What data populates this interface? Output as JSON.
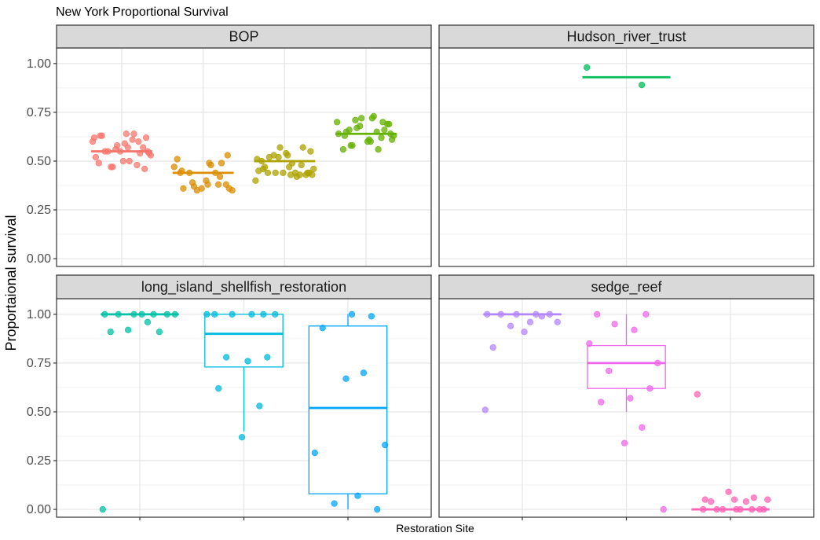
{
  "chart_data": {
    "type": "boxplot",
    "title": "New York Proportional Survival",
    "xlabel": "Restoration Site",
    "ylabel": "Proportaional survival",
    "ylim": [
      -0.04,
      1.08
    ],
    "yticks": [
      "0.00",
      "0.25",
      "0.50",
      "0.75",
      "1.00"
    ],
    "grid": true,
    "legend": "none",
    "panels": [
      {
        "name": "BOP",
        "groups": [
          {
            "color": "#F8766D",
            "box": {
              "q1": 0.55,
              "median": 0.55,
              "q3": 0.55,
              "lower": 0.55,
              "upper": 0.55
            },
            "points": [
              0.62,
              0.61,
              0.58,
              0.57,
              0.55,
              0.54,
              0.5,
              0.49,
              0.48,
              0.47,
              0.57,
              0.6,
              0.62,
              0.55,
              0.54,
              0.59,
              0.63,
              0.64,
              0.55,
              0.53,
              0.52,
              0.5,
              0.47,
              0.46,
              0.56,
              0.6,
              0.63,
              0.64,
              0.55
            ]
          },
          {
            "color": "#DB8E00",
            "box": {
              "q1": 0.44,
              "median": 0.44,
              "q3": 0.44,
              "lower": 0.44,
              "upper": 0.44
            },
            "points": [
              0.44,
              0.38,
              0.37,
              0.49,
              0.47,
              0.53,
              0.44,
              0.49,
              0.4,
              0.36,
              0.44,
              0.36,
              0.35,
              0.51,
              0.48,
              0.39,
              0.38,
              0.35,
              0.42,
              0.45,
              0.38,
              0.36
            ]
          },
          {
            "color": "#AEA200",
            "box": {
              "q1": 0.5,
              "median": 0.5,
              "q3": 0.5,
              "lower": 0.5,
              "upper": 0.5
            },
            "points": [
              0.57,
              0.53,
              0.47,
              0.42,
              0.44,
              0.46,
              0.45,
              0.49,
              0.53,
              0.44,
              0.52,
              0.48,
              0.46,
              0.47,
              0.55,
              0.52,
              0.51,
              0.44,
              0.57,
              0.43,
              0.44,
              0.43,
              0.54,
              0.5,
              0.43,
              0.44,
              0.43,
              0.4,
              0.44
            ]
          },
          {
            "color": "#64B200",
            "box": {
              "q1": 0.64,
              "median": 0.64,
              "q3": 0.64,
              "lower": 0.64,
              "upper": 0.64
            },
            "points": [
              0.73,
              0.71,
              0.69,
              0.68,
              0.7,
              0.63,
              0.6,
              0.61,
              0.58,
              0.64,
              0.65,
              0.72,
              0.69,
              0.66,
              0.63,
              0.6,
              0.56,
              0.62,
              0.67,
              0.72,
              0.7,
              0.64,
              0.58,
              0.66,
              0.61,
              0.65,
              0.56
            ]
          }
        ]
      },
      {
        "name": "Hudson_river_trust",
        "groups": [
          {
            "color": "#00BD5C",
            "box": {
              "q1": 0.93,
              "median": 0.93,
              "q3": 0.93,
              "lower": 0.93,
              "upper": 0.93
            },
            "points": [
              0.98,
              0.89
            ]
          }
        ]
      },
      {
        "name": "long_island_shellfish_restoration",
        "groups": [
          {
            "color": "#00C1A7",
            "box": {
              "q1": 1.0,
              "median": 1.0,
              "q3": 1.0,
              "lower": 1.0,
              "upper": 1.0
            },
            "points": [
              1.0,
              1.0,
              1.0,
              1.0,
              1.0,
              1.0,
              1.0,
              0.91,
              0.91,
              0.92,
              0.96,
              0.0
            ]
          },
          {
            "color": "#00BADE",
            "box": {
              "q1": 0.73,
              "median": 0.9,
              "q3": 1.0,
              "lower": 0.4,
              "upper": 1.0
            },
            "points": [
              1.0,
              1.0,
              1.0,
              1.0,
              1.0,
              1.0,
              0.78,
              0.78,
              0.76,
              0.62,
              0.53,
              0.37
            ]
          },
          {
            "color": "#00A6FF",
            "box": {
              "q1": 0.08,
              "median": 0.52,
              "q3": 0.94,
              "lower": 0.0,
              "upper": 1.0
            },
            "points": [
              0.99,
              1.0,
              0.93,
              0.7,
              0.67,
              0.33,
              0.29,
              0.07,
              0.03,
              0.0
            ]
          }
        ]
      },
      {
        "name": "sedge_reef",
        "groups": [
          {
            "color": "#B385FF",
            "box": {
              "q1": 1.0,
              "median": 1.0,
              "q3": 1.0,
              "lower": 1.0,
              "upper": 1.0
            },
            "points": [
              1.0,
              1.0,
              1.0,
              1.0,
              1.0,
              0.96,
              0.91,
              0.83,
              0.99,
              0.94,
              0.96,
              0.51
            ]
          },
          {
            "color": "#EF67EB",
            "box": {
              "q1": 0.62,
              "median": 0.75,
              "q3": 0.84,
              "lower": 0.5,
              "upper": 1.0
            },
            "points": [
              1.0,
              1.0,
              0.95,
              0.92,
              0.85,
              0.75,
              0.71,
              0.62,
              0.57,
              0.55,
              0.42,
              0.34,
              0.0
            ]
          },
          {
            "color": "#FF63B6",
            "box": {
              "q1": 0.0,
              "median": 0.0,
              "q3": 0.0,
              "lower": 0.0,
              "upper": 0.0
            },
            "points": [
              0.06,
              0.05,
              0.05,
              0.04,
              0.09,
              0.05,
              0.59,
              0.0,
              0.0,
              0.0,
              0.0,
              0.0,
              0.0,
              0.0,
              0.0,
              0.04
            ]
          }
        ]
      }
    ]
  }
}
